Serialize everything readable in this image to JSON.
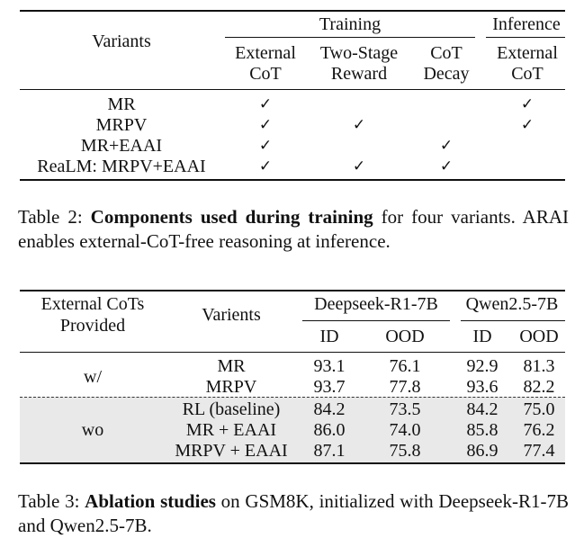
{
  "table2": {
    "header": {
      "variants": "Variants",
      "training": "Training",
      "inference": "Inference",
      "col_external_cot": [
        "External",
        "CoT"
      ],
      "col_two_stage": [
        "Two-Stage",
        "Reward"
      ],
      "col_cot_decay": [
        "CoT",
        "Decay"
      ],
      "col_inf_external_cot": [
        "External",
        "CoT"
      ]
    },
    "check_glyph": "✓",
    "rows": [
      {
        "name": "MR",
        "marks": [
          true,
          false,
          false,
          true
        ]
      },
      {
        "name": "MRPV",
        "marks": [
          true,
          true,
          false,
          true
        ]
      },
      {
        "name": "MR+EAAI",
        "marks": [
          true,
          false,
          true,
          false
        ]
      },
      {
        "name": "ReaLM: MRPV+EAAI",
        "marks": [
          true,
          true,
          true,
          false
        ]
      }
    ],
    "caption": {
      "label": "Table 2: ",
      "bold": "Components used during training",
      "rest": " for four variants. ARAI enables external-CoT-free reasoning at inference."
    }
  },
  "table3": {
    "header": {
      "external_cots": [
        "External CoTs",
        "Provided"
      ],
      "variants": "Varients",
      "model1": "Deepseek-R1-7B",
      "model2": "Qwen2.5-7B",
      "id": "ID",
      "ood": "OOD"
    },
    "groups": [
      {
        "label": "w/",
        "rows": [
          {
            "name": "MR",
            "values": [
              "93.1",
              "76.1",
              "92.9",
              "81.3"
            ]
          },
          {
            "name": "MRPV",
            "values": [
              "93.7",
              "77.8",
              "93.6",
              "82.2"
            ]
          }
        ]
      },
      {
        "label": "wo",
        "rows": [
          {
            "name": "RL (baseline)",
            "values": [
              "84.2",
              "73.5",
              "84.2",
              "75.0"
            ]
          },
          {
            "name": "MR + EAAI",
            "values": [
              "86.0",
              "74.0",
              "85.8",
              "76.2"
            ]
          },
          {
            "name": "MRPV + EAAI",
            "values": [
              "87.1",
              "75.8",
              "86.9",
              "77.4"
            ]
          }
        ]
      }
    ],
    "caption": {
      "label": "Table 3: ",
      "bold": "Ablation studies",
      "rest": " on GSM8K, initialized with Deepseek-R1-7B and Qwen2.5-7B."
    }
  }
}
